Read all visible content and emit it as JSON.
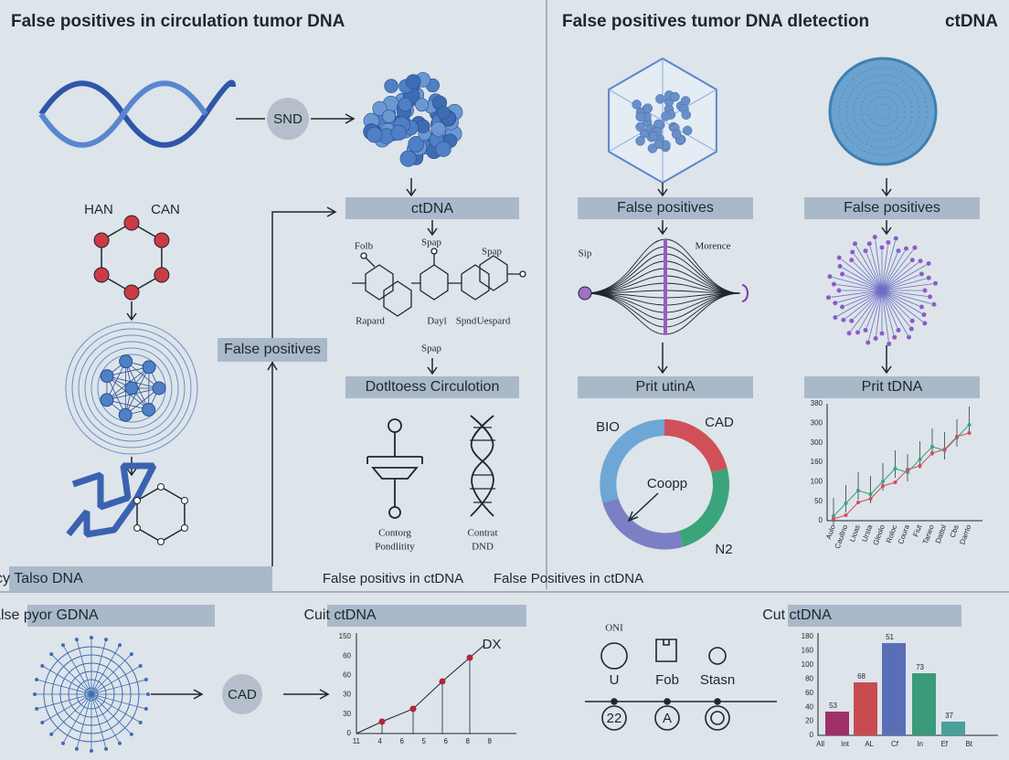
{
  "left_panel": {
    "title": "False positives in circulation tumor DNA",
    "snd": "SND",
    "han": "HAN",
    "can": "CAN",
    "ctdna_box": "ctDNA",
    "structure_labels": [
      "Folb",
      "Spap",
      "Spap",
      "Rapard",
      "Dayl",
      "Spnd",
      "Uespard",
      "Spap"
    ],
    "false_positives_box": "False positives",
    "circulation_box": "Dotltoess Circulotion",
    "left_caption": [
      "Contorg",
      "Pondlitity"
    ],
    "right_caption": [
      "Contrat",
      "DND"
    ],
    "footer_box": "Sucercy Talso DNA",
    "footer_text": "False positivs in ctDNA"
  },
  "right_panel": {
    "title": "False positives tumor DNA dletection",
    "corner": "ctDNA",
    "box_left": "False positives",
    "box_right": "False positives",
    "sip": "Sip",
    "morence": "Morence",
    "prit_left": "Prit utinA",
    "prit_right": "Prit tDNA",
    "donut_labels": [
      "BIO",
      "CAD",
      "Coopp",
      "N2"
    ],
    "chart_yticks": [
      "380",
      "300",
      "300",
      "160",
      "100",
      "50",
      "0"
    ],
    "chart_xlabels": [
      "Aulo",
      "Caullno",
      "Lioas",
      "Ursta",
      "Gleolo",
      "Roloc",
      "Coura",
      "Fiut",
      "Taneo",
      "Dattol",
      "Cbs",
      "Darrto"
    ],
    "footer_text": "False Positives in ctDNA"
  },
  "bottom": {
    "box1": "False pyor GDNA",
    "cad": "CAD",
    "box2": "Cuit ctDNA",
    "line_yticks": [
      "150",
      "60",
      "60",
      "30",
      "30",
      "0"
    ],
    "line_xlabels": [
      "11",
      "4",
      "6",
      "5",
      "6",
      "8",
      "8"
    ],
    "dx": "DX",
    "icons": [
      "ONI",
      "U",
      "Fob",
      "Stasn",
      "22",
      "A"
    ],
    "box3": "Cut ctDNA",
    "bar_yticks": [
      "180",
      "160",
      "100",
      "80",
      "60",
      "40",
      "20",
      "0"
    ],
    "bar_labels": [
      "53",
      "68",
      "51",
      "73",
      "37"
    ],
    "bar_xlabels": [
      "All",
      "Int",
      "AL",
      "Cf",
      "In",
      "Ef",
      "Bt"
    ]
  }
}
